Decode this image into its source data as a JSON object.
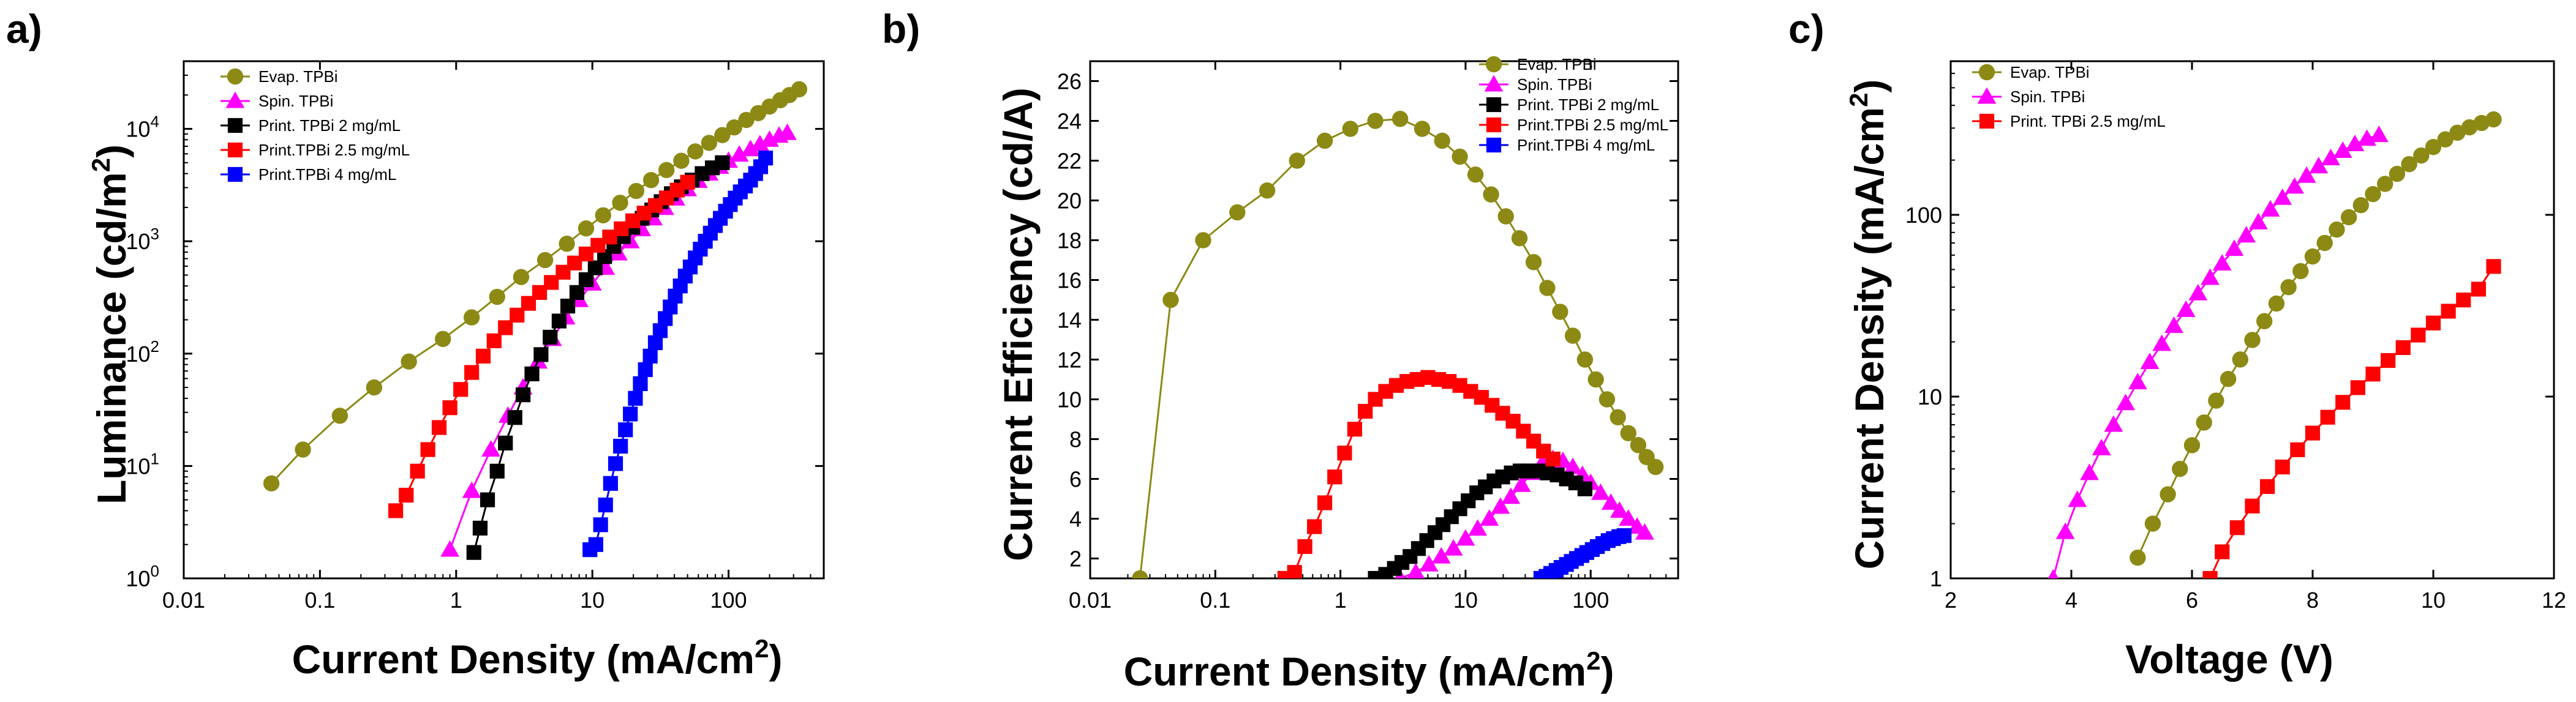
{
  "colors": {
    "evap": "#8c8a14",
    "spin": "#ff00ff",
    "print2": "#000000",
    "print25": "#ff0000",
    "print4": "#0000ff"
  },
  "panels": [
    {
      "label": "a)",
      "legend": [
        "Evap. TPBi",
        "Spin. TPBi",
        "Print. TPBi 2 mg/mL",
        "Print.TPBi 2.5 mg/mL",
        "Print.TPBi 4 mg/mL"
      ]
    },
    {
      "label": "b)",
      "legend": [
        "Evap. TPBi",
        "Spin. TPBi",
        "Print. TPBi 2 mg/mL",
        "Print.TPBi 2.5 mg/mL",
        "Print.TPBi 4 mg/mL"
      ]
    },
    {
      "label": "c)",
      "legend": [
        "Evap. TPBi",
        "Spin. TPBi",
        "Print. TPBi 2.5 mg/mL"
      ]
    }
  ],
  "chart_data": [
    {
      "type": "scatter",
      "title": "",
      "xlabel": "Current Density (mA/cm",
      "xlabel_sup": "2",
      "xlabel_end": ")",
      "ylabel": "Luminance (cd/m",
      "ylabel_sup": "2",
      "ylabel_end": ")",
      "xscale": "log",
      "yscale": "log",
      "xlim": [
        0.01,
        500
      ],
      "ylim": [
        1,
        40000
      ],
      "xticks": [
        0.01,
        0.1,
        1,
        10,
        100
      ],
      "xtick_labels": [
        "0.01",
        "0.1",
        "1",
        "10",
        "100"
      ],
      "yticks": [
        1,
        10,
        100,
        1000,
        10000
      ],
      "ytick_labels": [
        "10",
        "10",
        "10",
        "10",
        "10"
      ],
      "ytick_exps": [
        "0",
        "1",
        "2",
        "3",
        "4"
      ],
      "legend_position": "top-left",
      "series": [
        {
          "name": "Evap. TPBi",
          "marker": "circle",
          "color_key": "evap",
          "x": [
            0.044,
            0.075,
            0.14,
            0.25,
            0.45,
            0.8,
            1.3,
            2.0,
            3.0,
            4.5,
            6.5,
            9,
            12,
            16,
            21,
            27,
            35,
            45,
            57,
            72,
            90,
            110,
            135,
            165,
            200,
            240,
            280,
            330
          ],
          "y": [
            7,
            14,
            28,
            50,
            85,
            135,
            210,
            320,
            480,
            680,
            950,
            1300,
            1700,
            2200,
            2800,
            3500,
            4300,
            5200,
            6300,
            7500,
            8800,
            10300,
            12000,
            13800,
            15800,
            18000,
            20000,
            22500
          ]
        },
        {
          "name": "Spin. TPBi",
          "marker": "triangle",
          "color_key": "spin",
          "x": [
            0.9,
            1.3,
            1.8,
            2.4,
            3.1,
            4.0,
            5.1,
            6.4,
            8.0,
            10,
            12.5,
            15.5,
            19,
            23,
            28,
            34,
            41,
            50,
            60,
            72,
            86,
            100,
            120,
            145,
            170,
            200,
            235,
            270
          ],
          "y": [
            1.8,
            6,
            14,
            28,
            50,
            85,
            135,
            210,
            300,
            420,
            580,
            780,
            1000,
            1280,
            1600,
            1980,
            2400,
            2900,
            3450,
            4000,
            4600,
            5200,
            5900,
            6600,
            7300,
            8000,
            8700,
            9200
          ]
        },
        {
          "name": "Print. TPBi 2 mg/mL",
          "marker": "square",
          "color_key": "print2",
          "x": [
            1.35,
            1.5,
            1.7,
            2.0,
            2.3,
            2.7,
            3.1,
            3.6,
            4.2,
            4.9,
            5.7,
            6.6,
            7.7,
            9.0,
            10.5,
            12.3,
            14.4,
            16.9,
            19.8,
            23.2,
            27.3,
            32,
            38,
            45,
            54,
            64,
            76,
            90
          ],
          "y": [
            1.7,
            2.8,
            5,
            9,
            16,
            27,
            43,
            66,
            98,
            140,
            195,
            265,
            350,
            455,
            580,
            730,
            900,
            1100,
            1330,
            1600,
            1900,
            2250,
            2650,
            3050,
            3500,
            4000,
            4500,
            5000
          ]
        },
        {
          "name": "Print.TPBi 2.5 mg/mL",
          "marker": "square",
          "color_key": "print25",
          "x": [
            0.36,
            0.43,
            0.52,
            0.62,
            0.75,
            0.9,
            1.08,
            1.3,
            1.58,
            1.9,
            2.3,
            2.8,
            3.4,
            4.1,
            5.0,
            6.1,
            7.4,
            9.0,
            11,
            13.4,
            16.3,
            19.8,
            24,
            29,
            35,
            42,
            50
          ],
          "y": [
            4,
            5.5,
            9,
            14,
            22,
            33,
            48,
            68,
            95,
            130,
            170,
            220,
            280,
            350,
            430,
            530,
            640,
            770,
            920,
            1090,
            1290,
            1520,
            1780,
            2080,
            2430,
            2850,
            3350
          ]
        },
        {
          "name": "Print.TPBi 4 mg/mL",
          "marker": "square",
          "color_key": "print4",
          "x": [
            9.6,
            10.6,
            11.5,
            12.5,
            13.6,
            14.8,
            16.1,
            17.5,
            19,
            20.7,
            22.5,
            24.5,
            26.6,
            29,
            31.5,
            34.3,
            37.3,
            40.6,
            44.2,
            48.1,
            52.3,
            57,
            62,
            67.5,
            73.5,
            80,
            87,
            95,
            103,
            112,
            122,
            133,
            145,
            158,
            172,
            187
          ],
          "y": [
            1.8,
            2,
            3,
            4.5,
            7,
            10.5,
            15,
            21,
            29,
            40,
            54,
            72,
            95,
            125,
            160,
            205,
            260,
            325,
            400,
            490,
            590,
            710,
            850,
            1000,
            1180,
            1380,
            1600,
            1850,
            2120,
            2420,
            2750,
            3100,
            3500,
            4000,
            4600,
            5500
          ]
        }
      ]
    },
    {
      "type": "scatter",
      "title": "",
      "xlabel": "Current Density (mA/cm",
      "xlabel_sup": "2",
      "xlabel_end": ")",
      "ylabel": "Current Efficiency (cd/A)",
      "xscale": "log",
      "yscale": "linear",
      "xlim": [
        0.01,
        500
      ],
      "ylim": [
        1,
        27
      ],
      "xticks": [
        0.01,
        0.1,
        1,
        10,
        100
      ],
      "xtick_labels": [
        "0.01",
        "0.1",
        "1",
        "10",
        "100"
      ],
      "yticks": [
        2,
        4,
        6,
        8,
        10,
        12,
        14,
        16,
        18,
        20,
        22,
        24,
        26
      ],
      "ytick_labels": [
        "2",
        "4",
        "6",
        "8",
        "10",
        "12",
        "14",
        "16",
        "18",
        "20",
        "22",
        "24",
        "26"
      ],
      "legend_position": "top-right",
      "series": [
        {
          "name": "Evap. TPBi",
          "marker": "circle",
          "color_key": "evap",
          "x": [
            0.025,
            0.044,
            0.08,
            0.15,
            0.26,
            0.45,
            0.75,
            1.2,
            1.9,
            3.0,
            4.5,
            6.5,
            9,
            12,
            16,
            21,
            27,
            35,
            45,
            57,
            72,
            90,
            110,
            135,
            165,
            200,
            240,
            280,
            330
          ],
          "y": [
            1.0,
            15,
            18,
            19.4,
            20.5,
            22,
            23,
            23.6,
            24,
            24.1,
            23.6,
            23,
            22.2,
            21.3,
            20.3,
            19.2,
            18.1,
            16.9,
            15.6,
            14.4,
            13.2,
            12,
            11,
            10,
            9.1,
            8.3,
            7.7,
            7.1,
            6.6
          ]
        },
        {
          "name": "Spin. TPBi",
          "marker": "triangle",
          "color_key": "spin",
          "x": [
            3.0,
            4.0,
            5.1,
            6.4,
            8.0,
            10,
            12.5,
            15.5,
            19,
            23,
            28,
            34,
            41,
            50,
            60,
            72,
            86,
            100,
            120,
            145,
            170,
            200,
            235,
            270
          ],
          "y": [
            1.0,
            1.3,
            1.7,
            2.1,
            2.5,
            3.0,
            3.5,
            4.0,
            4.6,
            5.1,
            5.7,
            6.3,
            6.8,
            7.0,
            6.9,
            6.6,
            6.2,
            5.8,
            5.3,
            4.8,
            4.4,
            4.0,
            3.6,
            3.3
          ]
        },
        {
          "name": "Print. TPBi 2 mg/mL",
          "marker": "square",
          "color_key": "print2",
          "x": [
            1.9,
            2.3,
            2.7,
            3.1,
            3.6,
            4.2,
            4.9,
            5.7,
            6.6,
            7.7,
            9.0,
            10.5,
            12.3,
            14.4,
            16.9,
            19.8,
            23.2,
            27.3,
            32,
            38,
            45,
            54,
            64,
            76,
            90
          ],
          "y": [
            1.0,
            1.2,
            1.5,
            1.8,
            2.1,
            2.5,
            2.9,
            3.3,
            3.7,
            4.1,
            4.5,
            4.9,
            5.3,
            5.6,
            5.9,
            6.1,
            6.3,
            6.4,
            6.4,
            6.4,
            6.3,
            6.2,
            6.0,
            5.8,
            5.5
          ]
        },
        {
          "name": "Print.TPBi 2.5 mg/mL",
          "marker": "square",
          "color_key": "print25",
          "x": [
            0.36,
            0.43,
            0.52,
            0.62,
            0.75,
            0.9,
            1.08,
            1.3,
            1.58,
            1.9,
            2.3,
            2.8,
            3.4,
            4.1,
            5.0,
            6.1,
            7.4,
            9.0,
            11,
            13.4,
            16.3,
            19.8,
            24,
            29,
            35,
            42,
            50
          ],
          "y": [
            1.0,
            1.3,
            2.6,
            3.6,
            4.8,
            6.1,
            7.3,
            8.5,
            9.4,
            10.0,
            10.4,
            10.7,
            10.9,
            11.0,
            11.1,
            11.0,
            10.9,
            10.7,
            10.4,
            10.1,
            9.7,
            9.3,
            8.9,
            8.4,
            7.9,
            7.4,
            7.0
          ]
        },
        {
          "name": "Print.TPBi 4 mg/mL",
          "marker": "square",
          "color_key": "print4",
          "x": [
            40,
            44,
            48,
            53,
            58,
            64,
            70,
            77,
            85,
            93,
            103,
            113,
            125,
            138,
            152,
            168,
            185
          ],
          "y": [
            1.0,
            1.1,
            1.25,
            1.4,
            1.55,
            1.7,
            1.85,
            2.0,
            2.15,
            2.3,
            2.45,
            2.6,
            2.75,
            2.9,
            3.0,
            3.1,
            3.15
          ]
        }
      ]
    },
    {
      "type": "scatter",
      "title": "",
      "xlabel": "Voltage (V)",
      "ylabel": "Current Density (mA/cm",
      "ylabel_sup": "2",
      "ylabel_end": ")",
      "xscale": "linear",
      "yscale": "log",
      "xlim": [
        2,
        12
      ],
      "ylim": [
        1,
        700
      ],
      "xticks": [
        2,
        4,
        6,
        8,
        10,
        12
      ],
      "xtick_labels": [
        "2",
        "4",
        "6",
        "8",
        "10",
        "12"
      ],
      "yticks": [
        1,
        10,
        100
      ],
      "ytick_labels": [
        "1",
        "10",
        "100"
      ],
      "legend_position": "top-left",
      "series": [
        {
          "name": "Evap. TPBi",
          "marker": "circle",
          "color_key": "evap",
          "x": [
            5.1,
            5.35,
            5.6,
            5.8,
            6.0,
            6.2,
            6.4,
            6.6,
            6.8,
            7.0,
            7.2,
            7.4,
            7.6,
            7.8,
            8.0,
            8.2,
            8.4,
            8.6,
            8.8,
            9.0,
            9.2,
            9.4,
            9.6,
            9.8,
            10.0,
            10.2,
            10.4,
            10.6,
            10.8,
            11.0
          ],
          "y": [
            1.3,
            2.0,
            2.9,
            4.0,
            5.4,
            7.2,
            9.5,
            12.5,
            16,
            20.5,
            26,
            32.5,
            40,
            49,
            59,
            70,
            83,
            97,
            113,
            130,
            148,
            168,
            190,
            212,
            236,
            260,
            283,
            303,
            320,
            335
          ]
        },
        {
          "name": "Spin. TPBi",
          "marker": "triangle",
          "color_key": "spin",
          "x": [
            3.7,
            3.9,
            4.1,
            4.3,
            4.5,
            4.7,
            4.9,
            5.1,
            5.3,
            5.5,
            5.7,
            5.9,
            6.1,
            6.3,
            6.5,
            6.7,
            6.9,
            7.1,
            7.3,
            7.5,
            7.7,
            7.9,
            8.1,
            8.3,
            8.5,
            8.7,
            8.9,
            9.1
          ],
          "y": [
            1.0,
            1.8,
            2.7,
            3.8,
            5.2,
            7.0,
            9.2,
            12,
            15.5,
            19.5,
            24.5,
            30,
            37,
            45,
            54,
            65,
            77,
            91,
            107,
            124,
            143,
            164,
            185,
            205,
            225,
            245,
            262,
            275
          ]
        },
        {
          "name": "Print. TPBi 2.5 mg/mL",
          "marker": "square",
          "color_key": "print25",
          "x": [
            6.3,
            6.5,
            6.75,
            7.0,
            7.25,
            7.5,
            7.75,
            8.0,
            8.25,
            8.5,
            8.75,
            9.0,
            9.25,
            9.5,
            9.75,
            10.0,
            10.25,
            10.5,
            10.75,
            11.0
          ],
          "y": [
            1.0,
            1.4,
            1.9,
            2.5,
            3.2,
            4.1,
            5.1,
            6.3,
            7.7,
            9.3,
            11.2,
            13.3,
            15.8,
            18.6,
            21.8,
            25.4,
            29.5,
            34,
            39,
            52
          ]
        }
      ]
    }
  ]
}
